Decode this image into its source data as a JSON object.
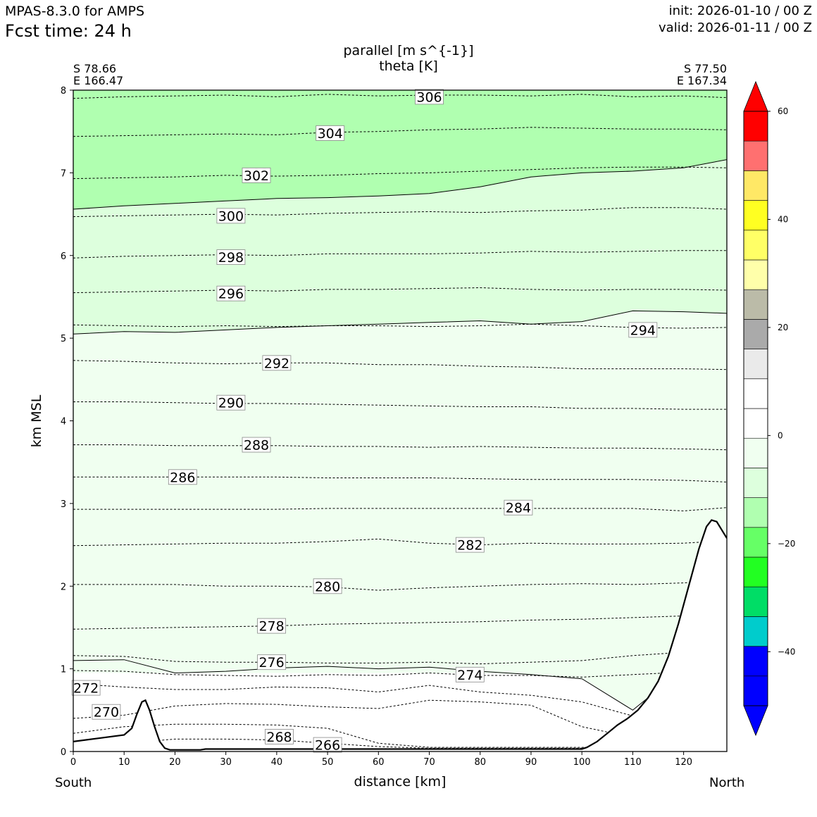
{
  "header": {
    "model": "MPAS-8.3.0 for AMPS",
    "fcst": "Fcst time:   24 h",
    "init": "init: 2026-01-10 / 00 Z",
    "valid": "valid: 2026-01-11 / 00 Z"
  },
  "chart_data": {
    "type": "cross-section",
    "title": "parallel [m s^{-1}]",
    "subtitle": "theta [K]",
    "xlabel": "distance [km]",
    "ylabel": "km MSL",
    "xlim": [
      0,
      128.5
    ],
    "ylim": [
      0,
      8
    ],
    "xticks": [
      0,
      10,
      20,
      30,
      40,
      50,
      60,
      70,
      80,
      90,
      100,
      110,
      120
    ],
    "yticks": [
      0,
      1,
      2,
      3,
      4,
      5,
      6,
      7,
      8
    ],
    "left_end": {
      "lat": "S 78.66",
      "lon": "E 166.47",
      "dir": "South"
    },
    "right_end": {
      "lat": "S 77.50",
      "lon": "E 167.34",
      "dir": "North"
    },
    "terrain": [
      [
        0,
        0.12
      ],
      [
        5,
        0.16
      ],
      [
        10,
        0.2
      ],
      [
        11.5,
        0.28
      ],
      [
        12.5,
        0.45
      ],
      [
        13.5,
        0.6
      ],
      [
        14.2,
        0.62
      ],
      [
        15,
        0.5
      ],
      [
        16,
        0.3
      ],
      [
        17,
        0.12
      ],
      [
        18,
        0.04
      ],
      [
        19,
        0.02
      ],
      [
        25,
        0.02
      ],
      [
        26,
        0.03
      ],
      [
        100,
        0.03
      ],
      [
        101,
        0.05
      ],
      [
        103,
        0.12
      ],
      [
        105,
        0.22
      ],
      [
        107,
        0.32
      ],
      [
        109,
        0.4
      ],
      [
        111,
        0.5
      ],
      [
        113,
        0.65
      ],
      [
        115,
        0.85
      ],
      [
        117,
        1.15
      ],
      [
        119,
        1.55
      ],
      [
        121,
        2.0
      ],
      [
        123,
        2.45
      ],
      [
        124.5,
        2.72
      ],
      [
        125.5,
        2.8
      ],
      [
        126.5,
        2.78
      ],
      [
        127.5,
        2.68
      ],
      [
        128.5,
        2.58
      ]
    ],
    "theta_contours": [
      {
        "level": 306,
        "label_km": 70.0,
        "label_height": 7.92,
        "heights": [
          7.9,
          7.92,
          7.93,
          7.94,
          7.92,
          7.95,
          7.93,
          7.94,
          7.94,
          7.93,
          7.95,
          7.92,
          7.93,
          7.91
        ]
      },
      {
        "level": 304,
        "label_km": 50.5,
        "label_height": 7.48,
        "heights": [
          7.44,
          7.45,
          7.46,
          7.47,
          7.46,
          7.49,
          7.5,
          7.52,
          7.53,
          7.55,
          7.54,
          7.53,
          7.53,
          7.52
        ]
      },
      {
        "level": 302,
        "label_km": 36.0,
        "label_height": 6.97,
        "heights": [
          6.93,
          6.94,
          6.95,
          6.97,
          6.96,
          6.97,
          6.99,
          7.0,
          7.02,
          7.04,
          7.06,
          7.07,
          7.07,
          7.06
        ]
      },
      {
        "level": 300,
        "label_km": 31.0,
        "label_height": 6.48,
        "heights": [
          6.47,
          6.48,
          6.49,
          6.5,
          6.49,
          6.51,
          6.52,
          6.53,
          6.52,
          6.54,
          6.55,
          6.58,
          6.58,
          6.56
        ]
      },
      {
        "level": 298,
        "label_km": 31.0,
        "label_height": 5.98,
        "heights": [
          5.97,
          5.99,
          6.0,
          6.01,
          6.0,
          6.02,
          6.02,
          6.02,
          6.03,
          6.05,
          6.04,
          6.05,
          6.06,
          6.06
        ]
      },
      {
        "level": 296,
        "label_km": 31.0,
        "label_height": 5.54,
        "heights": [
          5.55,
          5.56,
          5.57,
          5.58,
          5.57,
          5.59,
          5.59,
          5.6,
          5.61,
          5.59,
          5.58,
          5.59,
          5.59,
          5.58
        ]
      },
      {
        "level": 294,
        "label_km": 112.0,
        "label_height": 5.1,
        "heights": [
          5.16,
          5.15,
          5.14,
          5.15,
          5.14,
          5.15,
          5.15,
          5.14,
          5.15,
          5.17,
          5.15,
          5.13,
          5.12,
          5.13
        ]
      },
      {
        "level": 292,
        "label_km": 40.0,
        "label_height": 4.7,
        "heights": [
          4.73,
          4.72,
          4.7,
          4.69,
          4.7,
          4.7,
          4.68,
          4.68,
          4.66,
          4.65,
          4.63,
          4.63,
          4.63,
          4.62
        ]
      },
      {
        "level": 290,
        "label_km": 31.0,
        "label_height": 4.22,
        "heights": [
          4.23,
          4.23,
          4.22,
          4.21,
          4.21,
          4.2,
          4.19,
          4.18,
          4.17,
          4.17,
          4.15,
          4.15,
          4.14,
          4.14
        ]
      },
      {
        "level": 288,
        "label_km": 36.0,
        "label_height": 3.71,
        "heights": [
          3.71,
          3.71,
          3.7,
          3.7,
          3.7,
          3.69,
          3.69,
          3.68,
          3.69,
          3.68,
          3.67,
          3.67,
          3.66,
          3.65
        ]
      },
      {
        "level": 286,
        "label_km": 21.5,
        "label_height": 3.32,
        "heights": [
          3.32,
          3.32,
          3.32,
          3.32,
          3.32,
          3.31,
          3.31,
          3.31,
          3.3,
          3.29,
          3.29,
          3.29,
          3.28,
          3.26
        ]
      },
      {
        "level": 284,
        "label_km": 87.5,
        "label_height": 2.95,
        "heights": [
          2.93,
          2.93,
          2.93,
          2.93,
          2.93,
          2.94,
          2.94,
          2.94,
          2.94,
          2.94,
          2.94,
          2.94,
          2.91,
          2.95
        ]
      },
      {
        "level": 282,
        "label_km": 78.0,
        "label_height": 2.5,
        "heights": [
          2.49,
          2.5,
          2.51,
          2.52,
          2.52,
          2.54,
          2.57,
          2.52,
          2.5,
          2.52,
          2.51,
          2.51,
          2.52,
          2.55
        ]
      },
      {
        "level": 280,
        "label_km": 50.0,
        "label_height": 2.0,
        "heights": [
          2.02,
          2.02,
          2.02,
          2.0,
          2.0,
          1.99,
          1.95,
          1.98,
          2.0,
          2.02,
          2.03,
          2.02,
          2.04,
          2.08
        ]
      },
      {
        "level": 278,
        "label_km": 39.0,
        "label_height": 1.52,
        "heights": [
          1.48,
          1.49,
          1.5,
          1.51,
          1.52,
          1.54,
          1.55,
          1.56,
          1.57,
          1.59,
          1.6,
          1.62,
          1.64,
          1.66
        ]
      },
      {
        "level": 276,
        "label_km": 39.0,
        "label_height": 1.08,
        "heights": [
          1.16,
          1.15,
          1.09,
          1.08,
          1.08,
          1.07,
          1.07,
          1.08,
          1.06,
          1.08,
          1.1,
          1.16,
          1.2,
          1.2
        ]
      },
      {
        "level": 274,
        "label_km": 78.0,
        "label_height": 0.93,
        "heights": [
          0.98,
          0.97,
          0.93,
          0.92,
          0.91,
          0.93,
          0.92,
          0.95,
          0.92,
          0.92,
          0.9,
          0.93,
          0.96,
          0.95
        ]
      },
      {
        "level": 272,
        "label_km": 2.5,
        "label_height": 0.77,
        "heights": [
          0.82,
          0.78,
          0.75,
          0.75,
          0.78,
          0.77,
          0.72,
          0.8,
          0.72,
          0.68,
          0.6,
          0.43,
          0.3,
          0.3
        ]
      },
      {
        "level": 270,
        "label_km": 6.5,
        "label_height": 0.48,
        "heights": [
          0.4,
          0.44,
          0.55,
          0.58,
          0.57,
          0.54,
          0.52,
          0.62,
          0.6,
          0.56,
          0.3,
          0.17,
          0.1,
          0.1
        ]
      },
      {
        "level": 268,
        "label_km": 40.5,
        "label_height": 0.18,
        "heights": [
          0.22,
          0.3,
          0.33,
          0.33,
          0.32,
          0.28,
          0.1,
          0.05,
          0.05,
          0.05,
          0.05,
          0.05,
          0.05,
          0.05
        ]
      },
      {
        "level": 266,
        "label_km": 50.0,
        "label_height": 0.08,
        "heights": [
          0.1,
          0.1,
          0.15,
          0.15,
          0.14,
          0.1,
          0.06,
          0.04,
          0.04,
          0.04,
          0.04,
          0.04,
          0.04,
          0.04
        ]
      }
    ],
    "parallel_wind_levels": [
      -50,
      -45,
      -40,
      -35,
      -30,
      -25,
      -20,
      -15,
      -10,
      -5,
      0,
      5,
      10,
      15,
      20,
      25,
      30,
      35,
      40,
      45,
      50,
      55,
      60
    ],
    "parallel_wind_zero_contours": [
      {
        "boundary": "-20/-15",
        "heights": [
          6.56,
          6.6,
          6.63,
          6.66,
          6.69,
          6.7,
          6.72,
          6.75,
          6.83,
          6.95,
          7.0,
          7.02,
          7.06,
          7.16
        ]
      },
      {
        "boundary": "-15/-10",
        "heights": [
          5.05,
          5.08,
          5.07,
          5.1,
          5.13,
          5.15,
          5.17,
          5.19,
          5.21,
          5.17,
          5.2,
          5.33,
          5.32,
          5.3
        ]
      },
      {
        "boundary": "-10/-5",
        "heights": [
          1.1,
          1.11,
          0.95,
          0.97,
          1.01,
          1.03,
          1.0,
          1.02,
          0.97,
          0.93,
          0.88,
          0.5,
          1.0,
          1.0
        ]
      }
    ],
    "colorbar": {
      "min": -50,
      "max": 60,
      "ticks": [
        60,
        40,
        20,
        0,
        -20,
        -40
      ],
      "tick_labels": [
        "60",
        "40",
        "20",
        "0",
        "−20",
        "−40"
      ],
      "colors": [
        "#0000ff",
        "#0000ff",
        "#00cccc",
        "#00dd66",
        "#22ff22",
        "#66ff66",
        "#b0ffb0",
        "#ddffdd",
        "#f0fff0",
        "#ffffff",
        "#ffffff",
        "#eaeaea",
        "#aaaaaa",
        "#bbbba8",
        "#ffffaa",
        "#ffff66",
        "#ffff22",
        "#ffe866",
        "#ff7070",
        "#ff0000"
      ],
      "extend_min_color": "#0000ff",
      "extend_max_color": "#ff0000"
    },
    "fill_colors": {
      "band_m20_m15": "#b0ffb0",
      "band_m15_m10": "#ddffdd",
      "band_m10_m5": "#f0fff0",
      "band_low": "#ffffff"
    }
  }
}
